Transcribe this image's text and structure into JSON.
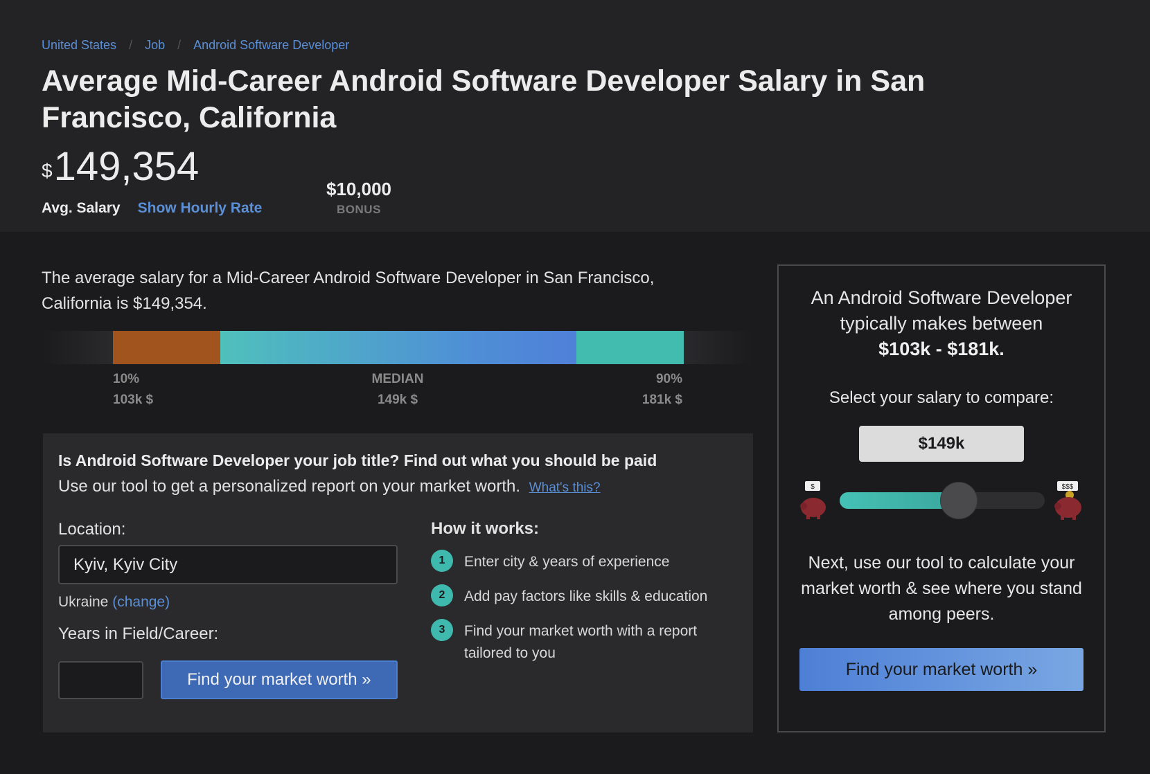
{
  "breadcrumb": {
    "items": [
      "United States",
      "Job",
      "Android Software Developer"
    ],
    "separator": "/"
  },
  "header": {
    "title": "Average Mid-Career Android Software Developer Salary in San Francisco, California",
    "currency_symbol": "$",
    "salary": "149,354",
    "avg_label": "Avg. Salary",
    "hourly_link": "Show Hourly Rate",
    "bonus_amount": "$10,000",
    "bonus_label": "BONUS"
  },
  "summary": {
    "text": "The average salary for a Mid-Career Android Software Developer in San Francisco, California is $149,354."
  },
  "range": {
    "low_pct": "10%",
    "low_value": "103k $",
    "median_label": "MEDIAN",
    "median_value": "149k $",
    "high_pct": "90%",
    "high_value": "181k $",
    "colors": {
      "low": "#a1541e",
      "mid_start": "#4fc0bc",
      "mid_end": "#4f80d8",
      "high": "#43bcb0"
    }
  },
  "tool": {
    "heading": "Is Android Software Developer your job title? Find out what you should be paid",
    "subheading": "Use our tool to get a personalized report on your market worth.",
    "whats_this": "What's this?",
    "location_label": "Location:",
    "location_value": "Kyiv, Kyiv City",
    "country": "Ukraine",
    "change_link": "(change)",
    "years_label": "Years in Field/Career:",
    "years_value": "",
    "button": "Find your market worth »",
    "how_title": "How it works:",
    "steps": [
      {
        "num": "1",
        "text": "Enter city & years of experience"
      },
      {
        "num": "2",
        "text": "Add pay factors like skills & education"
      },
      {
        "num": "3",
        "text": "Find your market worth with a report tailored to you"
      }
    ]
  },
  "side": {
    "intro": "An Android Software Developer typically makes between",
    "range": "$103k - $181k.",
    "select_label": "Select your salary to compare:",
    "selected_salary": "$149k",
    "slider_fraction": 0.58,
    "pig_left_tag": "$",
    "pig_right_tag": "$$$",
    "next_text": "Next, use our tool to calculate your market worth & see where you stand among peers.",
    "button": "Find your market worth »"
  }
}
